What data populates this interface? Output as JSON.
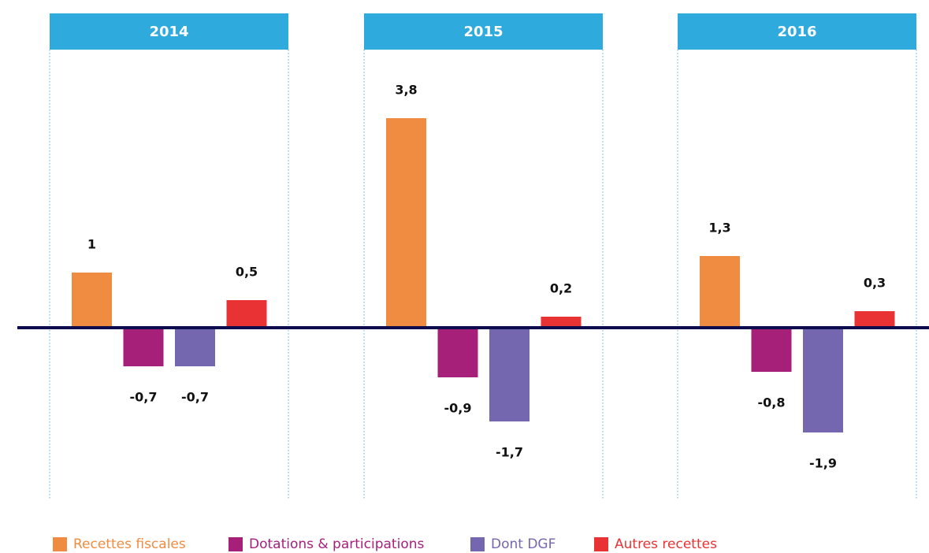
{
  "chart_data": {
    "type": "bar",
    "categories": [
      "2014",
      "2015",
      "2016"
    ],
    "series": [
      {
        "name": "Recettes fiscales",
        "color": "#ef8c42",
        "values": [
          1,
          3.8,
          1.3
        ],
        "value_labels": [
          "1",
          "3,8",
          "1,3"
        ]
      },
      {
        "name": "Dotations & participations",
        "color": "#a6207a",
        "values": [
          -0.7,
          -0.9,
          -0.8
        ],
        "value_labels": [
          "-0,7",
          "-0,9",
          "-0,8"
        ]
      },
      {
        "name": "Dont DGF",
        "color": "#7467b0",
        "values": [
          -0.7,
          -1.7,
          -1.9
        ],
        "value_labels": [
          "-0,7",
          "-1,7",
          "-1,9"
        ]
      },
      {
        "name": "Autres recettes",
        "color": "#e83233",
        "values": [
          0.5,
          0.2,
          0.3
        ],
        "value_labels": [
          "0,5",
          "0,2",
          "0,3"
        ]
      }
    ],
    "ylim": [
      -3,
      5
    ],
    "header_color": "#2eaadd",
    "baseline_color": "#0c0c4e"
  }
}
